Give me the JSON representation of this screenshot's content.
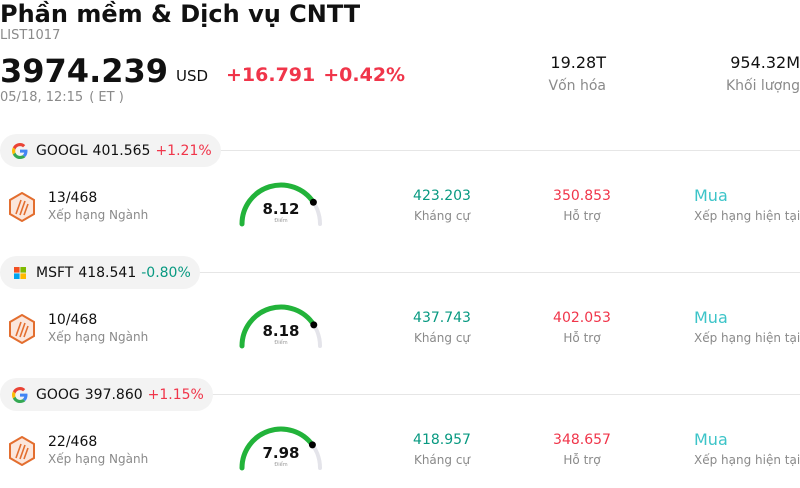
{
  "header": {
    "title": "Phần mềm & Dịch vụ CNTT",
    "code": "LIST1017",
    "price": "3974.239",
    "currency": "USD",
    "change": "+16.791",
    "change_pct": "+0.42%",
    "time": "05/18, 12:15",
    "timezone": "( ET )",
    "market_cap": {
      "value": "19.28T",
      "label": "Vốn hóa"
    },
    "volume": {
      "value": "954.32M",
      "label": "Khối lượng"
    }
  },
  "colors": {
    "up": "#f0354a",
    "down": "#089981",
    "rating": "#3cc4c8",
    "gauge": "#22b33a"
  },
  "stocks": [
    {
      "logo": "google-icon",
      "ticker": "GOOGL",
      "price": "401.565",
      "change": "+1.21%",
      "direction": "up",
      "rank": "13/468",
      "rank_label": "Xếp hạng Ngành",
      "score": "8.12",
      "score_value": 8.12,
      "score_label": "Điểm",
      "resistance": "423.203",
      "resistance_label": "Kháng cự",
      "support": "350.853",
      "support_label": "Hỗ trợ",
      "rating": "Mua",
      "rating_label": "Xếp hạng hiện tại"
    },
    {
      "logo": "microsoft-icon",
      "ticker": "MSFT",
      "price": "418.541",
      "change": "-0.80%",
      "direction": "down",
      "rank": "10/468",
      "rank_label": "Xếp hạng Ngành",
      "score": "8.18",
      "score_value": 8.18,
      "score_label": "Điểm",
      "resistance": "437.743",
      "resistance_label": "Kháng cự",
      "support": "402.053",
      "support_label": "Hỗ trợ",
      "rating": "Mua",
      "rating_label": "Xếp hạng hiện tại"
    },
    {
      "logo": "google-icon",
      "ticker": "GOOG",
      "price": "397.860",
      "change": "+1.15%",
      "direction": "up",
      "rank": "22/468",
      "rank_label": "Xếp hạng Ngành",
      "score": "7.98",
      "score_value": 7.98,
      "score_label": "Điểm",
      "resistance": "418.957",
      "resistance_label": "Kháng cự",
      "support": "348.657",
      "support_label": "Hỗ trợ",
      "rating": "Mua",
      "rating_label": "Xếp hạng hiện tại"
    }
  ]
}
